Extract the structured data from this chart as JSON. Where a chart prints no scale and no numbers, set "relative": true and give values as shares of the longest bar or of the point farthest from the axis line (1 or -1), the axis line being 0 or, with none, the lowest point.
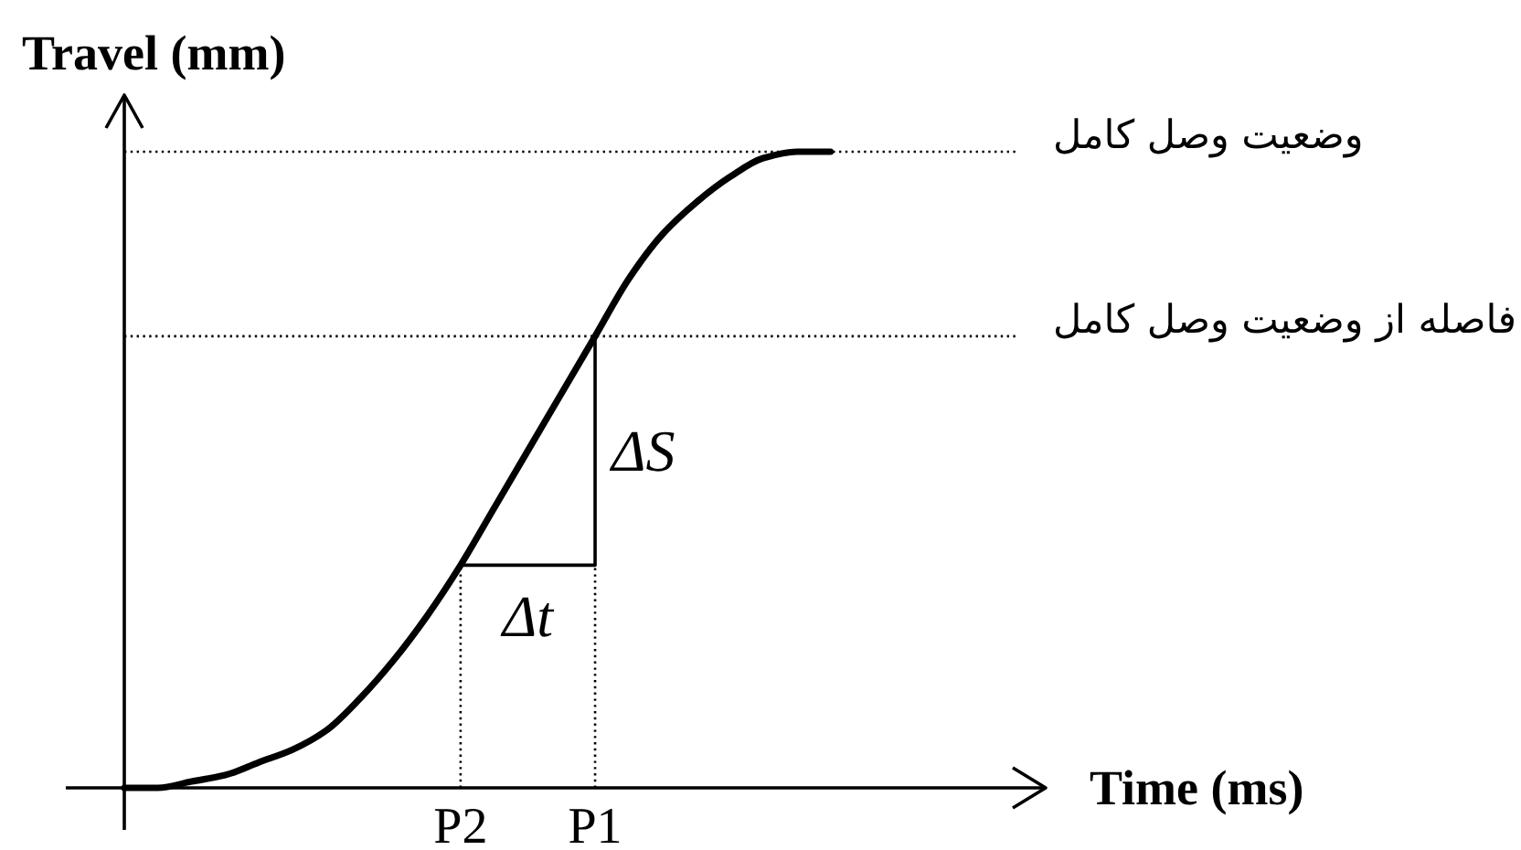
{
  "chart_data": {
    "type": "line",
    "relative": true,
    "xlabel": "Time (ms)",
    "ylabel": "Travel (mm)",
    "categories": [
      null,
      null,
      null,
      null,
      null,
      null,
      null,
      null,
      null,
      null,
      "P2",
      null,
      null,
      null,
      "P1",
      null,
      null,
      null,
      null,
      null,
      null,
      null
    ],
    "series": [
      {
        "color": "#000000",
        "values": [
          0,
          0,
          0.01,
          0.02,
          0.04,
          0.06,
          0.09,
          0.14,
          0.2,
          0.27,
          0.35,
          0.44,
          0.53,
          0.62,
          0.71,
          0.8,
          0.87,
          0.92,
          0.96,
          0.99,
          1.0,
          1.0
        ]
      },
      {
        "color": "#000000",
        "x": [
          "P2",
          "P1",
          "P1"
        ],
        "values": [
          0.35,
          0.35,
          0.71
        ]
      },
      {
        "color": "#000000",
        "x": [
          "P2",
          "P2"
        ],
        "values": [
          0,
          0.35
        ],
        "line_style": "dotted"
      },
      {
        "color": "#000000",
        "x": [
          "P1",
          "P1"
        ],
        "values": [
          0,
          0.35
        ],
        "line_style": "dotted"
      }
    ],
    "ref_lines": [
      {
        "axis": "y",
        "value": 1.0,
        "label": "وضعیت وصل کامل",
        "line_style": "dotted",
        "color": "#000000"
      },
      {
        "axis": "y",
        "value": 0.71,
        "label": "فاصله از وضعیت وصل کامل",
        "line_style": "dotted",
        "color": "#000000"
      }
    ],
    "annotations": [
      {
        "text": "ΔS",
        "x": "P1",
        "y": 0.53
      },
      {
        "text": "Δt",
        "y": 0.35
      }
    ]
  }
}
